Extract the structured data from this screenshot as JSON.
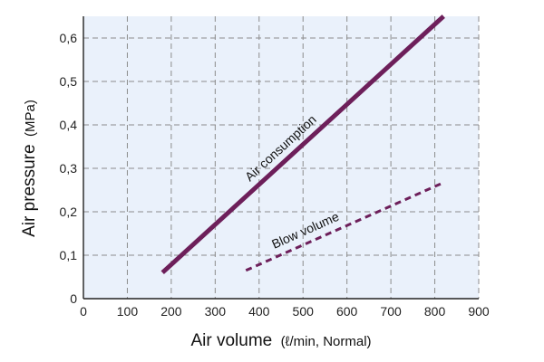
{
  "chart_data": {
    "type": "line",
    "xlabel": "Air volume",
    "xlabel_unit": "(ℓ/min, Normal)",
    "ylabel": "Air pressure",
    "ylabel_unit": "(MPa)",
    "xlim": [
      0,
      900
    ],
    "ylim": [
      0,
      0.65
    ],
    "x_ticks": [
      0,
      100,
      200,
      300,
      400,
      500,
      600,
      700,
      800,
      900
    ],
    "x_tick_labels": [
      "0",
      "100",
      "200",
      "300",
      "400",
      "500",
      "600",
      "700",
      "800",
      "900"
    ],
    "y_ticks": [
      0,
      0.1,
      0.2,
      0.3,
      0.4,
      0.5,
      0.6
    ],
    "y_tick_labels": [
      "0",
      "0,1",
      "0,2",
      "0,3",
      "0,4",
      "0,5",
      "0,6"
    ],
    "grid": true,
    "series": [
      {
        "name": "Air consumption",
        "style": "solid",
        "color": "#6d1f5a",
        "x": [
          180,
          820
        ],
        "y": [
          0.06,
          0.65
        ]
      },
      {
        "name": "Blow volume",
        "style": "dashed",
        "color": "#6d1f5a",
        "x": [
          370,
          815
        ],
        "y": [
          0.065,
          0.265
        ]
      }
    ]
  }
}
